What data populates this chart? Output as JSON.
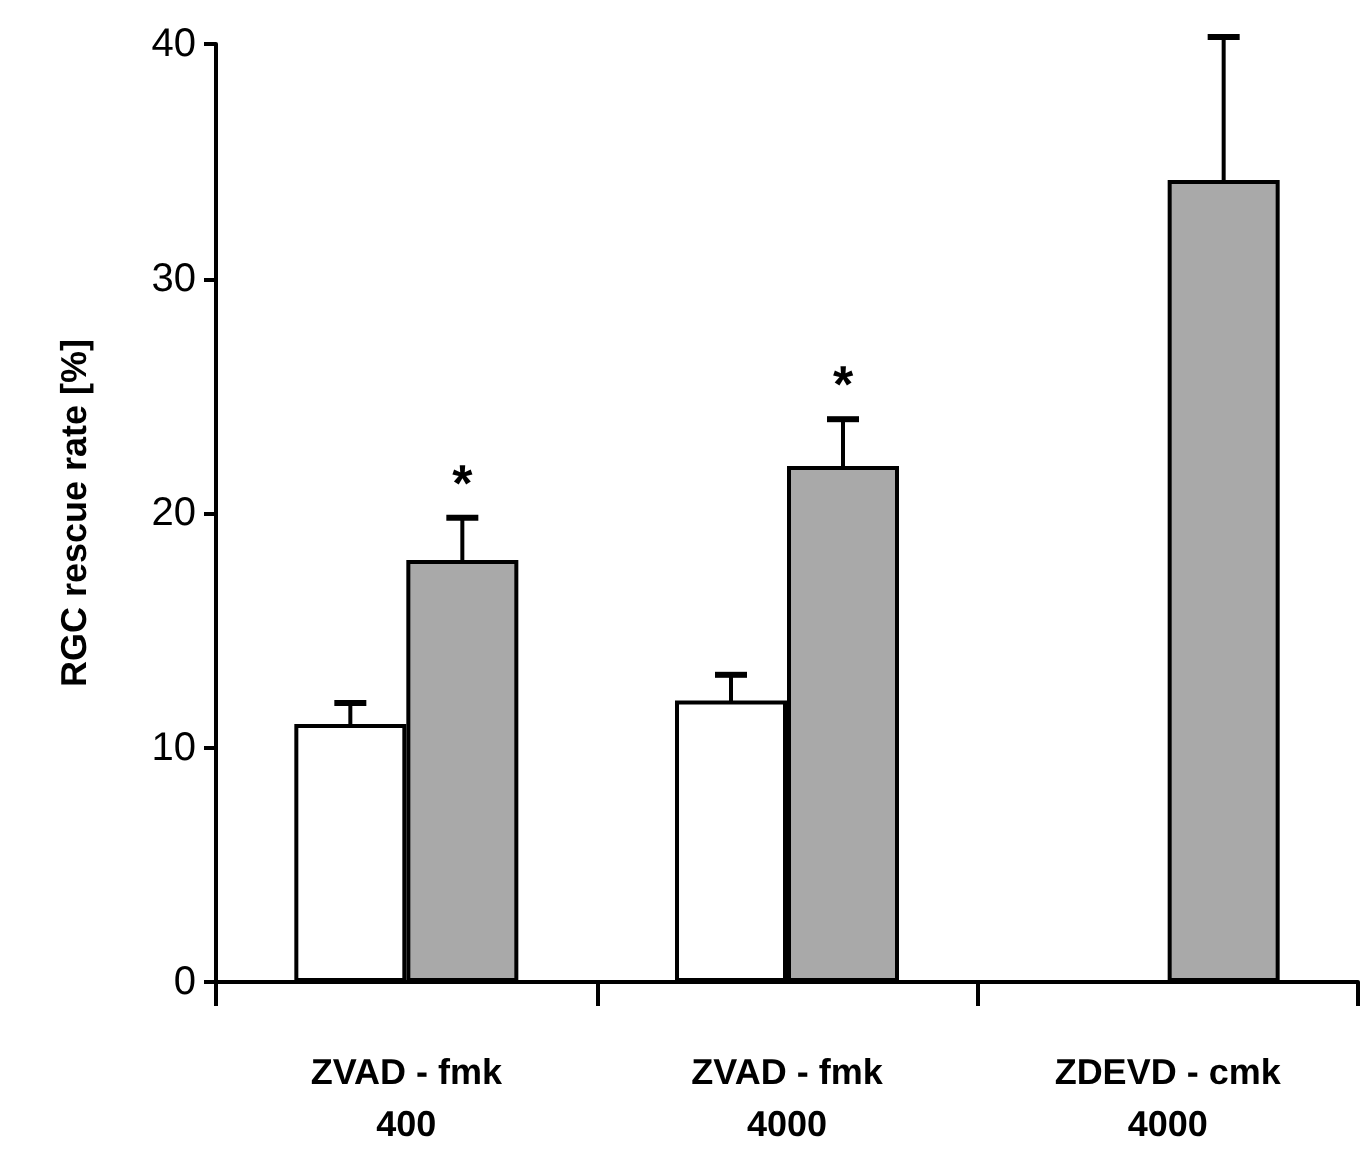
{
  "chart_data": {
    "type": "bar",
    "ylabel": "RGC rescue rate [%]",
    "categories": [
      "ZVAD - fmk\n400",
      "ZVAD - fmk\n4000",
      "ZDEVD - cmk\n4000"
    ],
    "series": [
      {
        "color": "#ffffff",
        "values": [
          11.0,
          12.0,
          null
        ],
        "errors": [
          0.9,
          1.1,
          null
        ]
      },
      {
        "color": "#a9a9a9",
        "values": [
          18.0,
          22.0,
          34.2
        ],
        "errors": [
          1.8,
          2.0,
          6.1
        ]
      }
    ],
    "ylim": [
      0,
      40
    ],
    "yticks": [
      0,
      10,
      20,
      30,
      40
    ],
    "grid": false,
    "annotations": [
      "*",
      "*"
    ]
  }
}
